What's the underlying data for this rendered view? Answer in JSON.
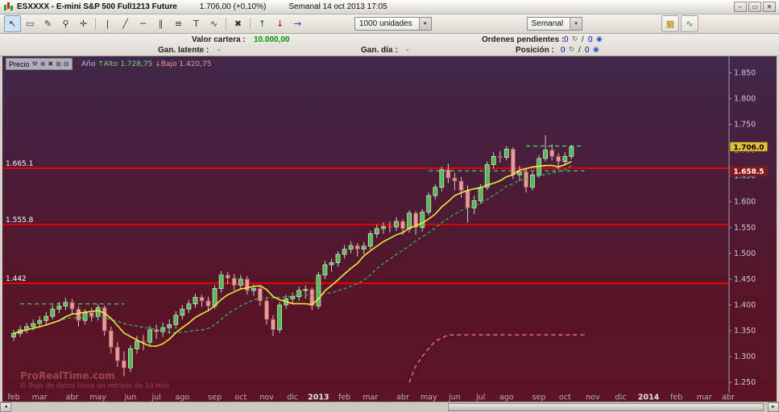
{
  "window": {
    "title_symbol": "ESXXXX - E-mini S&P 500 Full1213 Future",
    "title_price": "1.706,00 (+0,10%)",
    "title_meta": "Semanal  14 oct 2013 17:05",
    "minimize_glyph": "–",
    "maximize_glyph": "▭",
    "close_glyph": "✕"
  },
  "toolbar": {
    "tools": [
      {
        "name": "pointer-tool",
        "glyph": "↖",
        "active": true
      },
      {
        "name": "selection-tool",
        "glyph": "▭"
      },
      {
        "name": "draw-tool",
        "glyph": "✎"
      },
      {
        "name": "zoom-tool",
        "glyph": "⚲"
      },
      {
        "name": "crosshair-tool",
        "glyph": "✛"
      },
      {
        "name": "separator"
      },
      {
        "name": "vertical-line-tool",
        "glyph": "|"
      },
      {
        "name": "oblique-line-tool",
        "glyph": "╱"
      },
      {
        "name": "horizontal-line-tool",
        "glyph": "─"
      },
      {
        "name": "channel-tool",
        "glyph": "∥"
      },
      {
        "name": "fibonacci-tool",
        "glyph": "≡"
      },
      {
        "name": "text-tool",
        "glyph": "T"
      },
      {
        "name": "zigzag-tool",
        "glyph": "∿"
      },
      {
        "name": "separator"
      },
      {
        "name": "delete-tool",
        "glyph": "✖"
      },
      {
        "name": "separator"
      },
      {
        "name": "buy-arrow-tool",
        "glyph": "↑",
        "color": "#007700"
      },
      {
        "name": "sell-arrow-tool",
        "glyph": "↓",
        "color": "#cc0000"
      },
      {
        "name": "alert-arrow-tool",
        "glyph": "→",
        "color": "#0033cc"
      }
    ],
    "units_dropdown": "1000 unidades",
    "timeframe_dropdown": "Semanal",
    "right_tools": [
      {
        "name": "highlight-patterns-button",
        "glyph": "▦",
        "color": "#b8860b"
      },
      {
        "name": "indicators-button",
        "glyph": "∿",
        "color": "#2a8a2a"
      }
    ],
    "dropdown_arrow_glyph": "▼"
  },
  "account": {
    "valor_cartera_label": "Valor cartera :",
    "valor_cartera_value": "10.000,00",
    "ordenes_label": "Ordenes pendientes :",
    "ordenes_value": "0",
    "ordenes_value2": "0",
    "gan_latente_label": "Gan. latente :",
    "gan_latente_value": "-",
    "gan_dia_label": "Gan. día :",
    "gan_dia_value": "-",
    "posicion_label": "Posición :",
    "posicion_value": "0",
    "posicion_value2": "0",
    "slash": "/"
  },
  "chart_overlay": {
    "indicator_label": "Precio",
    "year_label": "Año",
    "high_text": "↑Alto 1.728,75",
    "low_text": "↓Bajo 1.420,75",
    "panel_icons": [
      {
        "name": "indicator-properties-icon",
        "glyph": "⚒"
      },
      {
        "name": "indicator-zoom-icon",
        "glyph": "⊕"
      },
      {
        "name": "indicator-close-icon",
        "glyph": "✖"
      },
      {
        "name": "panel-maximize-icon",
        "glyph": "⊞"
      },
      {
        "name": "panel-minimize-icon",
        "glyph": "⊟"
      }
    ]
  },
  "watermark": {
    "line1": "ProRealTime.com",
    "line2": "El flujo de datos tiene un retraso de 10 min"
  },
  "scrollbar": {
    "left_glyph": "◄",
    "right_glyph": "►"
  },
  "chart_data": {
    "type": "candlestick",
    "timeframe": "weekly",
    "title": "E-mini S&P 500 Full1213 Future - Semanal",
    "y_range": [
      1230,
      1860
    ],
    "bg_gradient": [
      "#41284a",
      "#4a1d3a",
      "#561528",
      "#5c1323"
    ],
    "y_ticks": [
      {
        "label": "1.850",
        "value": 1850
      },
      {
        "label": "1.800",
        "value": 1800
      },
      {
        "label": "1.750",
        "value": 1750
      },
      {
        "label": "1.700",
        "value": 1700
      },
      {
        "label": "1.650",
        "value": 1650
      },
      {
        "label": "1.600",
        "value": 1600
      },
      {
        "label": "1.550",
        "value": 1550
      },
      {
        "label": "1.500",
        "value": 1500
      },
      {
        "label": "1.450",
        "value": 1450
      },
      {
        "label": "1.400",
        "value": 1400
      },
      {
        "label": "1.350",
        "value": 1350
      },
      {
        "label": "1.300",
        "value": 1300
      },
      {
        "label": "1.250",
        "value": 1250
      }
    ],
    "x_months": [
      {
        "label": "feb",
        "week": 0
      },
      {
        "label": "mar",
        "week": 4
      },
      {
        "label": "abr",
        "week": 9
      },
      {
        "label": "may",
        "week": 13
      },
      {
        "label": "jun",
        "week": 18
      },
      {
        "label": "jul",
        "week": 22
      },
      {
        "label": "ago",
        "week": 26
      },
      {
        "label": "sep",
        "week": 31
      },
      {
        "label": "oct",
        "week": 35
      },
      {
        "label": "nov",
        "week": 39
      },
      {
        "label": "dic",
        "week": 43
      },
      {
        "label": "2013",
        "week": 47,
        "bold": true
      },
      {
        "label": "feb",
        "week": 51
      },
      {
        "label": "mar",
        "week": 55
      },
      {
        "label": "abr",
        "week": 60
      },
      {
        "label": "may",
        "week": 64
      },
      {
        "label": "jun",
        "week": 68
      },
      {
        "label": "jul",
        "week": 72
      },
      {
        "label": "ago",
        "week": 76
      },
      {
        "label": "sep",
        "week": 81
      },
      {
        "label": "oct",
        "week": 85
      },
      {
        "label": "nov",
        "week": 89.3
      },
      {
        "label": "dic",
        "week": 93.6
      },
      {
        "label": "2014",
        "week": 97.9,
        "bold": true
      },
      {
        "label": "feb",
        "week": 102.2
      },
      {
        "label": "mar",
        "week": 106.5
      },
      {
        "label": "abr",
        "week": 110.2
      }
    ],
    "candles": [
      [
        1338,
        1352,
        1330,
        1345
      ],
      [
        1345,
        1360,
        1338,
        1352
      ],
      [
        1352,
        1365,
        1345,
        1358
      ],
      [
        1358,
        1372,
        1350,
        1364
      ],
      [
        1364,
        1378,
        1356,
        1370
      ],
      [
        1370,
        1386,
        1362,
        1378
      ],
      [
        1378,
        1400,
        1372,
        1392
      ],
      [
        1392,
        1406,
        1384,
        1398
      ],
      [
        1398,
        1414,
        1390,
        1405
      ],
      [
        1405,
        1412,
        1382,
        1392
      ],
      [
        1392,
        1398,
        1358,
        1370
      ],
      [
        1370,
        1392,
        1362,
        1385
      ],
      [
        1385,
        1394,
        1368,
        1378
      ],
      [
        1378,
        1402,
        1370,
        1395
      ],
      [
        1395,
        1399,
        1340,
        1350
      ],
      [
        1350,
        1358,
        1306,
        1318
      ],
      [
        1318,
        1328,
        1280,
        1292
      ],
      [
        1292,
        1310,
        1262,
        1278
      ],
      [
        1278,
        1322,
        1270,
        1315
      ],
      [
        1315,
        1340,
        1305,
        1330
      ],
      [
        1330,
        1342,
        1312,
        1328
      ],
      [
        1328,
        1360,
        1320,
        1352
      ],
      [
        1352,
        1362,
        1334,
        1348
      ],
      [
        1348,
        1366,
        1338,
        1356
      ],
      [
        1356,
        1372,
        1344,
        1362
      ],
      [
        1362,
        1388,
        1354,
        1380
      ],
      [
        1380,
        1400,
        1372,
        1392
      ],
      [
        1392,
        1410,
        1384,
        1402
      ],
      [
        1402,
        1422,
        1394,
        1415
      ],
      [
        1415,
        1420,
        1396,
        1408
      ],
      [
        1408,
        1416,
        1388,
        1398
      ],
      [
        1398,
        1438,
        1392,
        1432
      ],
      [
        1432,
        1466,
        1424,
        1458
      ],
      [
        1458,
        1464,
        1440,
        1452
      ],
      [
        1452,
        1460,
        1428,
        1438
      ],
      [
        1438,
        1458,
        1430,
        1450
      ],
      [
        1450,
        1456,
        1420,
        1428
      ],
      [
        1428,
        1440,
        1418,
        1432
      ],
      [
        1432,
        1436,
        1398,
        1408
      ],
      [
        1408,
        1412,
        1362,
        1372
      ],
      [
        1372,
        1380,
        1340,
        1352
      ],
      [
        1352,
        1406,
        1346,
        1400
      ],
      [
        1400,
        1420,
        1392,
        1412
      ],
      [
        1412,
        1424,
        1404,
        1416
      ],
      [
        1416,
        1436,
        1408,
        1428
      ],
      [
        1428,
        1438,
        1412,
        1430
      ],
      [
        1430,
        1434,
        1390,
        1398
      ],
      [
        1398,
        1464,
        1392,
        1458
      ],
      [
        1458,
        1486,
        1450,
        1478
      ],
      [
        1478,
        1490,
        1464,
        1482
      ],
      [
        1482,
        1504,
        1474,
        1498
      ],
      [
        1498,
        1516,
        1490,
        1508
      ],
      [
        1508,
        1524,
        1500,
        1515
      ],
      [
        1515,
        1520,
        1494,
        1508
      ],
      [
        1508,
        1522,
        1498,
        1514
      ],
      [
        1514,
        1544,
        1508,
        1538
      ],
      [
        1538,
        1556,
        1530,
        1548
      ],
      [
        1548,
        1560,
        1538,
        1552
      ],
      [
        1552,
        1562,
        1540,
        1551
      ],
      [
        1551,
        1570,
        1543,
        1562
      ],
      [
        1562,
        1566,
        1536,
        1548
      ],
      [
        1548,
        1584,
        1540,
        1578
      ],
      [
        1578,
        1582,
        1536,
        1550
      ],
      [
        1550,
        1586,
        1542,
        1580
      ],
      [
        1580,
        1618,
        1574,
        1612
      ],
      [
        1612,
        1634,
        1604,
        1628
      ],
      [
        1628,
        1668,
        1620,
        1662
      ],
      [
        1662,
        1674,
        1636,
        1646
      ],
      [
        1646,
        1656,
        1622,
        1640
      ],
      [
        1640,
        1648,
        1608,
        1622
      ],
      [
        1622,
        1632,
        1560,
        1588
      ],
      [
        1588,
        1612,
        1576,
        1602
      ],
      [
        1602,
        1634,
        1596,
        1628
      ],
      [
        1628,
        1678,
        1622,
        1672
      ],
      [
        1672,
        1696,
        1664,
        1688
      ],
      [
        1688,
        1698,
        1676,
        1686
      ],
      [
        1686,
        1708,
        1680,
        1702
      ],
      [
        1702,
        1706,
        1644,
        1652
      ],
      [
        1652,
        1670,
        1640,
        1658
      ],
      [
        1658,
        1664,
        1618,
        1628
      ],
      [
        1628,
        1658,
        1622,
        1652
      ],
      [
        1652,
        1690,
        1646,
        1684
      ],
      [
        1684,
        1729,
        1678,
        1700
      ],
      [
        1700,
        1712,
        1680,
        1688
      ],
      [
        1688,
        1694,
        1662,
        1678
      ],
      [
        1678,
        1696,
        1670,
        1688
      ],
      [
        1688,
        1710,
        1682,
        1706
      ]
    ],
    "h_lines": [
      {
        "price": 1665.1,
        "label": "1.665.1",
        "color": "#e40000"
      },
      {
        "price": 1555.8,
        "label": "1.555.8",
        "color": "#e40000"
      },
      {
        "price": 1442.0,
        "label": "1.442",
        "color": "#e40000"
      }
    ],
    "dashed_levels": [
      {
        "from": 1,
        "to": 17,
        "price": 1402
      },
      {
        "from": 64,
        "to": 88,
        "price": 1660
      },
      {
        "from": 79,
        "to": 88,
        "price": 1708
      }
    ],
    "trail_line": {
      "color": "#ef7090",
      "points": [
        [
          61,
          1250
        ],
        [
          62,
          1282
        ],
        [
          63,
          1300
        ],
        [
          64,
          1316
        ],
        [
          65,
          1330
        ],
        [
          67,
          1342
        ],
        [
          88,
          1342
        ]
      ]
    },
    "ma_fast_period": 8,
    "ma_slow_period": 16,
    "price_badges": [
      {
        "text": "1.706.0",
        "price": 1706,
        "bg": "#e8c030",
        "fg": "#000000"
      },
      {
        "text": "1.658.5",
        "price": 1658.5,
        "bg": "#8b1515",
        "fg": "#ffffff"
      }
    ],
    "colors": {
      "up": "#56b856",
      "up_border": "#c8e8c8",
      "down": "#e49c9c",
      "down_border": "#a84848",
      "wick": "#c9c9c9",
      "ma_fast": "#f0e840",
      "ma_slow": "#38b868",
      "level_dash": "#3ce07e",
      "axis": "#9aa0a8",
      "tick_text": "#cfc6d2",
      "month_text": "#bfaec4",
      "month_bold_text": "#e8e0ea",
      "watermark": "#a34a57"
    }
  }
}
